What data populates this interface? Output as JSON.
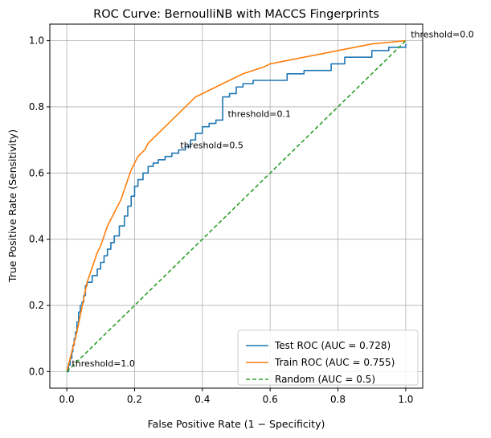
{
  "chart_data": {
    "type": "line",
    "title": "ROC Curve: BernoulliNB with MACCS Fingerprints",
    "xlabel": "False Positive Rate (1 − Specificity)",
    "ylabel": "True Positive Rate (Sensitivity)",
    "xlim": [
      -0.05,
      1.05
    ],
    "ylim": [
      -0.05,
      1.05
    ],
    "xticks": [
      "0.0",
      "0.2",
      "0.4",
      "0.6",
      "0.8",
      "1.0"
    ],
    "yticks": [
      "0.0",
      "0.2",
      "0.4",
      "0.6",
      "0.8",
      "1.0"
    ],
    "grid": true,
    "legend_position": "bottom-right",
    "series": [
      {
        "name": "Test ROC (AUC = 0.728)",
        "color": "#1f77b4",
        "style": "step",
        "x": [
          0.0,
          0.005,
          0.01,
          0.015,
          0.018,
          0.022,
          0.026,
          0.03,
          0.035,
          0.04,
          0.045,
          0.05,
          0.055,
          0.06,
          0.065,
          0.075,
          0.09,
          0.1,
          0.11,
          0.12,
          0.13,
          0.14,
          0.155,
          0.17,
          0.18,
          0.19,
          0.2,
          0.21,
          0.225,
          0.24,
          0.255,
          0.27,
          0.29,
          0.31,
          0.33,
          0.35,
          0.365,
          0.38,
          0.4,
          0.42,
          0.44,
          0.46,
          0.48,
          0.5,
          0.52,
          0.55,
          0.6,
          0.65,
          0.7,
          0.75,
          0.78,
          0.82,
          0.9,
          0.95,
          1.0
        ],
        "y": [
          0.0,
          0.02,
          0.04,
          0.06,
          0.08,
          0.1,
          0.12,
          0.15,
          0.18,
          0.2,
          0.21,
          0.23,
          0.26,
          0.27,
          0.27,
          0.29,
          0.31,
          0.33,
          0.35,
          0.37,
          0.39,
          0.41,
          0.44,
          0.47,
          0.5,
          0.53,
          0.56,
          0.58,
          0.6,
          0.62,
          0.63,
          0.64,
          0.65,
          0.66,
          0.67,
          0.68,
          0.7,
          0.72,
          0.74,
          0.75,
          0.76,
          0.83,
          0.84,
          0.86,
          0.87,
          0.88,
          0.88,
          0.9,
          0.91,
          0.91,
          0.93,
          0.95,
          0.97,
          0.98,
          0.99
        ]
      },
      {
        "name": "Train ROC (AUC = 0.755)",
        "color": "#ff7f0e",
        "style": "line",
        "x": [
          0.0,
          0.01,
          0.02,
          0.03,
          0.04,
          0.05,
          0.06,
          0.07,
          0.08,
          0.09,
          0.1,
          0.11,
          0.12,
          0.13,
          0.14,
          0.15,
          0.16,
          0.17,
          0.18,
          0.19,
          0.2,
          0.21,
          0.22,
          0.23,
          0.24,
          0.25,
          0.26,
          0.27,
          0.28,
          0.29,
          0.3,
          0.32,
          0.34,
          0.36,
          0.38,
          0.4,
          0.42,
          0.44,
          0.46,
          0.48,
          0.5,
          0.52,
          0.55,
          0.58,
          0.6,
          0.65,
          0.7,
          0.75,
          0.8,
          0.85,
          0.9,
          0.95,
          1.0
        ],
        "y": [
          0.0,
          0.04,
          0.08,
          0.12,
          0.17,
          0.22,
          0.27,
          0.3,
          0.33,
          0.36,
          0.38,
          0.41,
          0.44,
          0.46,
          0.48,
          0.5,
          0.52,
          0.55,
          0.58,
          0.61,
          0.63,
          0.65,
          0.66,
          0.67,
          0.69,
          0.7,
          0.71,
          0.72,
          0.73,
          0.74,
          0.75,
          0.77,
          0.79,
          0.81,
          0.83,
          0.84,
          0.85,
          0.86,
          0.87,
          0.88,
          0.89,
          0.9,
          0.91,
          0.92,
          0.93,
          0.94,
          0.95,
          0.96,
          0.97,
          0.98,
          0.99,
          0.995,
          1.0
        ]
      },
      {
        "name": "Random (AUC = 0.5)",
        "color": "#2ca02c",
        "style": "dashed",
        "x": [
          0.0,
          1.0
        ],
        "y": [
          0.0,
          1.0
        ]
      }
    ],
    "annotations": [
      {
        "text": "threshold=1.0",
        "x": 0.015,
        "y": 0.015
      },
      {
        "text": "threshold=0.5",
        "x": 0.335,
        "y": 0.675
      },
      {
        "text": "threshold=0.1",
        "x": 0.475,
        "y": 0.77
      },
      {
        "text": "threshold=0.0",
        "x": 1.015,
        "y": 1.01
      }
    ]
  }
}
